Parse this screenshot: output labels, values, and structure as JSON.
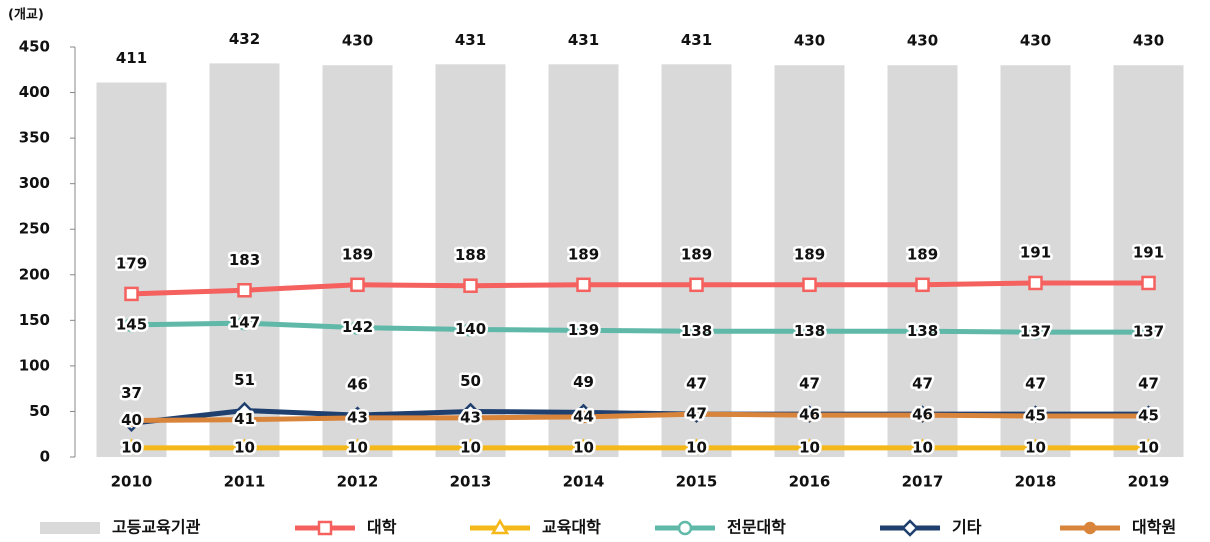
{
  "chart_data": {
    "type": "combo",
    "y_unit": "(개교)",
    "categories": [
      "2010",
      "2011",
      "2012",
      "2013",
      "2014",
      "2015",
      "2016",
      "2017",
      "2018",
      "2019"
    ],
    "ylim": [
      0,
      450
    ],
    "yticks": [
      0,
      50,
      100,
      150,
      200,
      250,
      300,
      350,
      400,
      450
    ],
    "series": [
      {
        "name": "고등교육기관",
        "kind": "bar",
        "color": "#d9d9d9",
        "label_position": "above",
        "values": [
          411,
          432,
          430,
          431,
          431,
          431,
          430,
          430,
          430,
          430
        ]
      },
      {
        "name": "대학",
        "kind": "line",
        "color": "#f4615e",
        "marker": "square",
        "label_position": "above",
        "values": [
          179,
          183,
          189,
          188,
          189,
          189,
          189,
          189,
          191,
          191
        ]
      },
      {
        "name": "교육대학",
        "kind": "line",
        "color": "#f5b81b",
        "marker": "triangle",
        "label_position": "center",
        "values": [
          10,
          10,
          10,
          10,
          10,
          10,
          10,
          10,
          10,
          10
        ]
      },
      {
        "name": "전문대학",
        "kind": "line",
        "color": "#5fb8a8",
        "marker": "circle",
        "label_position": "center",
        "values": [
          145,
          147,
          142,
          140,
          139,
          138,
          138,
          138,
          137,
          137
        ]
      },
      {
        "name": "기타",
        "kind": "line",
        "color": "#1f3f6e",
        "marker": "diamond",
        "label_position": "above",
        "values": [
          37,
          51,
          46,
          50,
          49,
          47,
          47,
          47,
          47,
          47
        ]
      },
      {
        "name": "대학원",
        "kind": "line",
        "color": "#d9843b",
        "marker": "dot",
        "label_position": "center",
        "values": [
          40,
          41,
          43,
          43,
          44,
          47,
          46,
          46,
          45,
          45
        ]
      }
    ]
  }
}
